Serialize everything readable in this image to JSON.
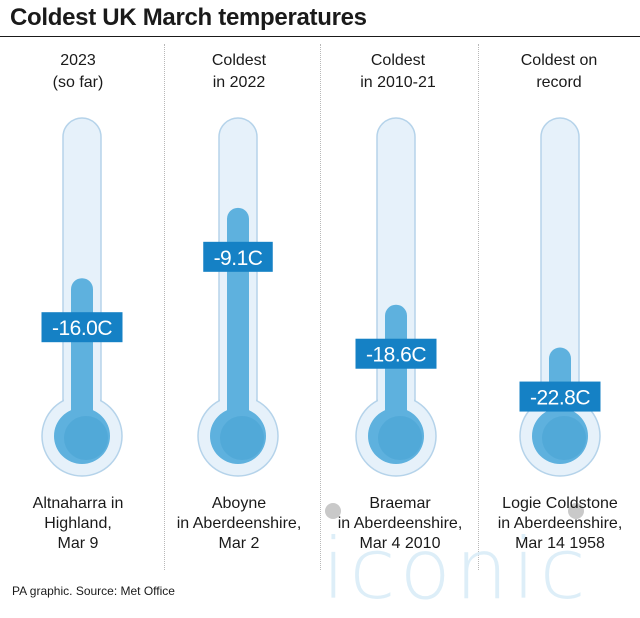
{
  "title": "Coldest UK March temperatures",
  "source": "PA graphic. Source: Met Office",
  "watermark": "iconic",
  "colors": {
    "tube_fill": "#e6f1fa",
    "tube_outline": "#b5d3ea",
    "mercury": "#5eb1de",
    "bulb_shade": "#4aa3d4",
    "label_bg": "#1581c5",
    "label_text": "#ffffff"
  },
  "columns": [
    {
      "header": [
        "2023",
        "(so far)"
      ],
      "label": "-16.0C",
      "location": [
        "Altnaharra in",
        "Highland,",
        "Mar 9"
      ]
    },
    {
      "header": [
        "Coldest",
        "in 2022"
      ],
      "label": "-9.1C",
      "location": [
        "Aboyne",
        "in Aberdeenshire,",
        "Mar 2"
      ]
    },
    {
      "header": [
        "Coldest",
        "in 2010-21"
      ],
      "label": "-18.6C",
      "location": [
        "Braemar",
        "in Aberdeenshire,",
        "Mar 4 2010"
      ]
    },
    {
      "header": [
        "Coldest on",
        "record"
      ],
      "label": "-22.8C",
      "location": [
        "Logie Coldstone",
        "in Aberdeenshire,",
        "Mar 14 1958"
      ]
    }
  ],
  "chart_data": {
    "type": "bar",
    "categories": [
      "2023 (so far)",
      "Coldest in 2022",
      "Coldest in 2010-21",
      "Coldest on record"
    ],
    "values": [
      -16.0,
      -9.1,
      -18.6,
      -22.8
    ],
    "units": "C",
    "title": "Coldest UK March temperatures",
    "xlabel": "",
    "ylabel": "",
    "grid": false
  }
}
